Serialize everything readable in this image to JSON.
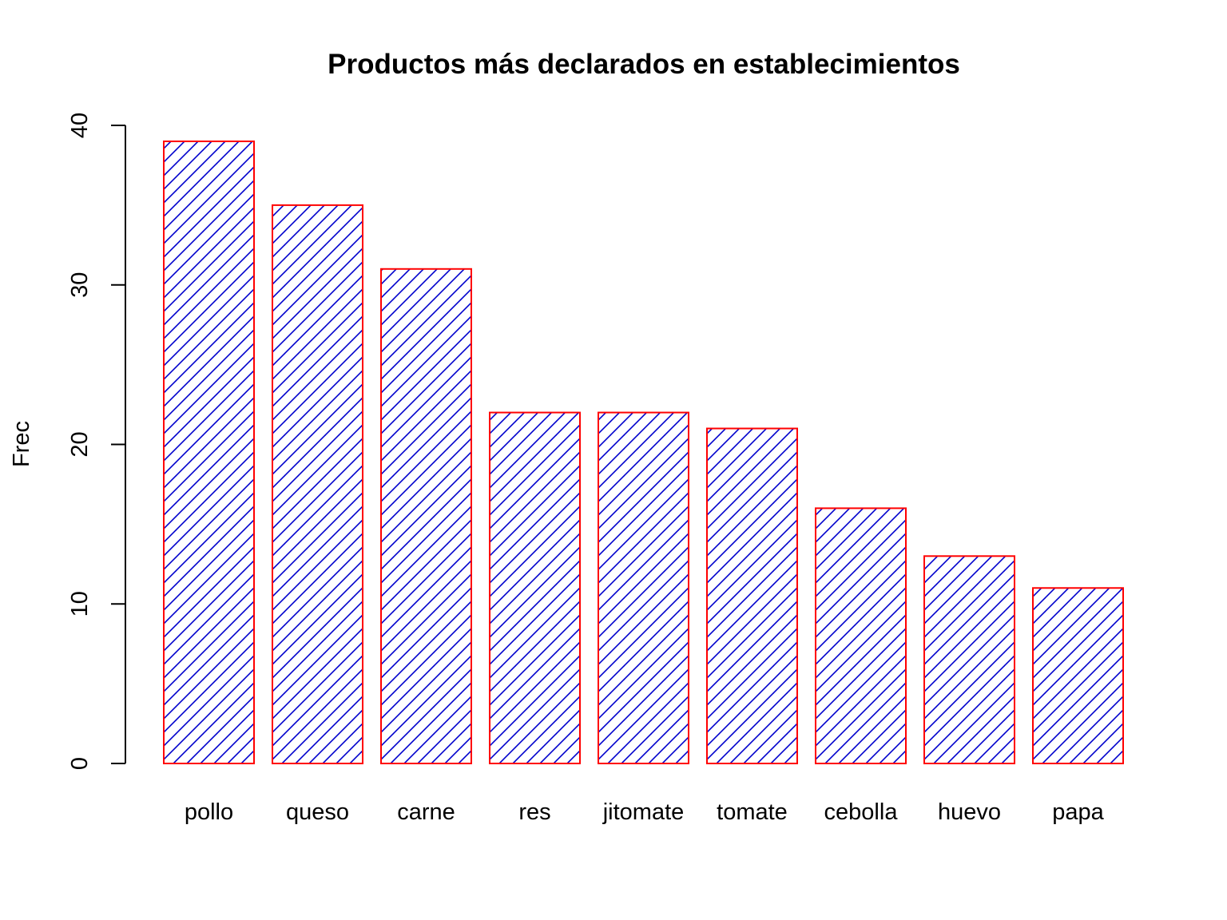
{
  "chart_data": {
    "type": "bar",
    "title": "Productos más declarados en establecimientos",
    "xlabel": "",
    "ylabel": "Frec",
    "categories": [
      "pollo",
      "queso",
      "carne",
      "res",
      "jitomate",
      "tomate",
      "cebolla",
      "huevo",
      "papa"
    ],
    "values": [
      39,
      35,
      31,
      22,
      22,
      21,
      16,
      13,
      11
    ],
    "ylim": [
      0,
      40
    ],
    "yticks": [
      "0",
      "10",
      "20",
      "30",
      "40"
    ],
    "grid": false,
    "legend": "none",
    "fill_pattern": "diagonal-hatch",
    "colors": {
      "bar_border": "#FF0000",
      "hatch": "#0000CC",
      "background": "#FFFFFF",
      "axis": "#000000"
    }
  }
}
